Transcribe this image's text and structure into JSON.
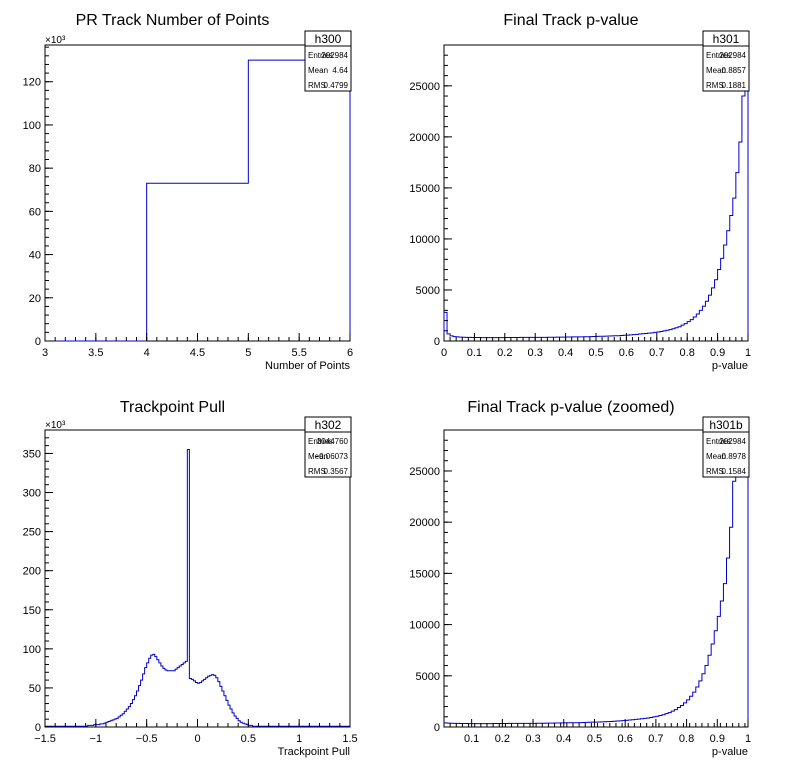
{
  "colors": {
    "line": "#0000cc",
    "axis": "#000000",
    "background": "#ffffff"
  },
  "chart_data": [
    {
      "id": "h300",
      "type": "histogram",
      "title": "PR Track Number of Points",
      "xlabel": "Number of Points",
      "ylabel": "",
      "xlim": [
        3,
        6
      ],
      "ylim": [
        0,
        137
      ],
      "y_multiplier_label": "×10³",
      "x_ticks": [
        "3",
        "3.5",
        "4",
        "4.5",
        "5",
        "5.5",
        "6"
      ],
      "y_ticks": [
        "0",
        "20",
        "40",
        "60",
        "80",
        "100",
        "120"
      ],
      "stats": {
        "name": "h300",
        "rows": [
          [
            "Entries",
            "202984"
          ],
          [
            "Mean",
            "4.64"
          ],
          [
            "RMS",
            "0.4799"
          ]
        ]
      },
      "bins": [
        {
          "lo": 3,
          "hi": 4,
          "v": 0
        },
        {
          "lo": 4,
          "hi": 5,
          "v": 73
        },
        {
          "lo": 5,
          "hi": 6,
          "v": 130
        }
      ]
    },
    {
      "id": "h301",
      "type": "histogram",
      "title": "Final Track p-value",
      "xlabel": "p-value",
      "ylabel": "",
      "xlim": [
        0,
        1
      ],
      "ylim": [
        0,
        29000
      ],
      "x_ticks": [
        "0",
        "0.1",
        "0.2",
        "0.3",
        "0.4",
        "0.5",
        "0.6",
        "0.7",
        "0.8",
        "0.9",
        "1"
      ],
      "y_ticks": [
        "0",
        "5000",
        "10000",
        "15000",
        "20000",
        "25000"
      ],
      "stats": {
        "name": "h301",
        "rows": [
          [
            "Entries",
            "202984"
          ],
          [
            "Mean",
            "0.8857"
          ],
          [
            "RMS",
            "0.1881"
          ]
        ]
      },
      "bin_lo": 0,
      "bin_width": 0.01,
      "values": [
        2800,
        700,
        500,
        430,
        400,
        380,
        370,
        360,
        350,
        340,
        340,
        340,
        330,
        330,
        330,
        330,
        330,
        330,
        330,
        330,
        340,
        340,
        340,
        340,
        340,
        350,
        350,
        350,
        350,
        350,
        360,
        360,
        360,
        360,
        370,
        370,
        370,
        380,
        380,
        380,
        390,
        390,
        400,
        400,
        410,
        410,
        420,
        420,
        430,
        440,
        450,
        460,
        470,
        480,
        490,
        500,
        510,
        520,
        540,
        560,
        580,
        600,
        620,
        650,
        680,
        710,
        740,
        770,
        800,
        840,
        880,
        930,
        990,
        1050,
        1120,
        1200,
        1300,
        1400,
        1550,
        1700,
        1900,
        2100,
        2350,
        2650,
        3000,
        3400,
        3900,
        4500,
        5200,
        6000,
        7000,
        8100,
        9400,
        10800,
        12300,
        14000,
        16500,
        19500,
        24000,
        29000
      ]
    },
    {
      "id": "h302",
      "type": "histogram",
      "title": "Trackpoint Pull",
      "xlabel": "Trackpoint Pull",
      "ylabel": "",
      "xlim": [
        -1.5,
        1.5
      ],
      "ylim": [
        0,
        380
      ],
      "y_multiplier_label": "×10³",
      "x_ticks": [
        "−1.5",
        "−1",
        "−0.5",
        "0",
        "0.5",
        "1",
        "1.5"
      ],
      "y_ticks": [
        "0",
        "50",
        "100",
        "150",
        "200",
        "250",
        "300",
        "350"
      ],
      "stats": {
        "name": "h302",
        "rows": [
          [
            "Entries",
            "3044760"
          ],
          [
            "Mean",
            "−0.06073"
          ],
          [
            "RMS",
            "0.3567"
          ]
        ]
      },
      "bin_lo": -1.5,
      "bin_width": 0.02,
      "values": [
        1,
        1,
        1,
        1,
        1,
        1,
        1,
        1,
        1,
        1,
        1,
        1,
        1,
        1,
        1,
        1,
        1,
        1,
        1,
        1,
        1,
        2,
        2,
        2,
        3,
        3,
        3,
        4,
        4,
        5,
        6,
        7,
        8,
        9,
        10,
        11,
        13,
        15,
        17,
        20,
        23,
        26,
        30,
        35,
        40,
        46,
        53,
        60,
        68,
        76,
        82,
        88,
        92,
        93,
        90,
        86,
        82,
        78,
        75,
        73,
        72,
        72,
        72,
        72,
        74,
        76,
        78,
        80,
        82,
        84,
        355,
        62,
        61,
        59,
        57,
        56,
        57,
        59,
        61,
        63,
        65,
        66,
        67,
        66,
        63,
        58,
        52,
        46,
        40,
        34,
        28,
        23,
        18,
        14,
        11,
        8,
        6,
        5,
        4,
        3,
        2,
        2,
        1,
        1,
        1,
        1,
        1,
        1,
        1,
        1,
        1,
        1,
        1,
        1,
        1,
        1,
        1,
        1,
        1,
        1,
        1,
        1,
        1,
        1,
        1,
        1,
        1,
        1,
        1,
        1,
        1,
        1,
        1,
        1,
        1,
        1,
        1,
        1,
        1,
        1,
        1,
        1,
        1,
        1,
        1,
        1,
        1,
        1,
        1,
        1
      ]
    },
    {
      "id": "h301b",
      "type": "histogram",
      "title": "Final Track p-value (zoomed)",
      "xlabel": "p-value",
      "ylabel": "",
      "xlim": [
        0.01,
        1
      ],
      "ylim": [
        0,
        29000
      ],
      "x_ticks": [
        "0.1",
        "0.2",
        "0.3",
        "0.4",
        "0.5",
        "0.6",
        "0.7",
        "0.8",
        "0.9",
        "1"
      ],
      "y_ticks": [
        "0",
        "5000",
        "10000",
        "15000",
        "20000",
        "25000"
      ],
      "stats": {
        "name": "h301b",
        "rows": [
          [
            "Entries",
            "202984"
          ],
          [
            "Mean",
            "0.8978"
          ],
          [
            "RMS",
            "0.1584"
          ]
        ]
      },
      "bin_lo": 0.01,
      "bin_width": 0.01,
      "values": [
        400,
        380,
        370,
        360,
        350,
        340,
        340,
        340,
        330,
        330,
        330,
        330,
        330,
        330,
        330,
        330,
        340,
        340,
        340,
        340,
        340,
        350,
        350,
        350,
        350,
        350,
        360,
        360,
        360,
        360,
        370,
        370,
        370,
        380,
        380,
        380,
        390,
        390,
        400,
        400,
        410,
        410,
        420,
        420,
        430,
        440,
        450,
        460,
        470,
        480,
        490,
        500,
        510,
        520,
        540,
        560,
        580,
        600,
        620,
        650,
        680,
        710,
        740,
        770,
        800,
        840,
        880,
        930,
        990,
        1050,
        1120,
        1200,
        1300,
        1400,
        1550,
        1700,
        1900,
        2100,
        2350,
        2650,
        3000,
        3400,
        3900,
        4500,
        5200,
        6000,
        7000,
        8100,
        9400,
        10800,
        12300,
        14000,
        16500,
        19500,
        24000,
        29000,
        29000,
        29000,
        29000
      ]
    }
  ]
}
